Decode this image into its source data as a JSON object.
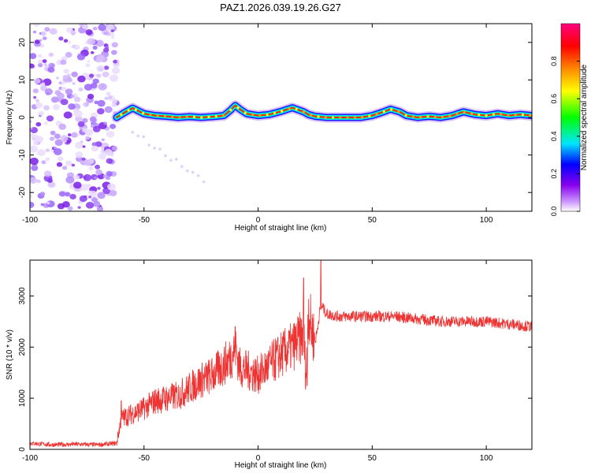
{
  "title": "PAZ1.2026.039.19.26.G27",
  "chart_data": [
    {
      "type": "heatmap",
      "title": "PAZ1.2026.039.19.26.G27",
      "xlabel": "Height of straight line (km)",
      "ylabel": "Frequency (Hz)",
      "xlim": [
        -100,
        120
      ],
      "ylim": [
        -25,
        25
      ],
      "xticks": [
        -100,
        -50,
        0,
        50,
        100
      ],
      "yticks": [
        -20,
        -10,
        0,
        10,
        20
      ],
      "colorbar": {
        "label": "Normalized spectral amplitude",
        "range": [
          0,
          1
        ],
        "ticks": [
          0.0,
          0.2,
          0.4,
          0.6,
          0.8
        ],
        "tick_labels": [
          "0.0",
          "0.2",
          "0.4",
          "0.6",
          "0.8"
        ],
        "colors": [
          "#ffffff",
          "#cc99ff",
          "#7700dd",
          "#0000ff",
          "#00e5ff",
          "#00ff00",
          "#ffff00",
          "#ff8800",
          "#ff0000",
          "#ff0080"
        ]
      },
      "noise_region_km": [
        -100,
        -62
      ],
      "signal_track": {
        "x": [
          -62,
          -58,
          -55,
          -50,
          -45,
          -40,
          -35,
          -30,
          -25,
          -20,
          -15,
          -12,
          -10,
          -8,
          -5,
          0,
          5,
          10,
          15,
          20,
          22,
          25,
          30,
          35,
          40,
          45,
          50,
          55,
          58,
          62,
          65,
          70,
          75,
          80,
          85,
          90,
          95,
          100,
          105,
          110,
          115,
          120
        ],
        "y": [
          0,
          1.5,
          2.5,
          1.0,
          0.5,
          0.3,
          0.0,
          0.2,
          0.0,
          0.2,
          0.5,
          2.0,
          3.2,
          2.2,
          1.0,
          0.5,
          0.8,
          1.6,
          2.6,
          1.5,
          0.8,
          0.3,
          0.0,
          0.0,
          0.0,
          0.0,
          0.5,
          1.5,
          2.2,
          1.5,
          0.5,
          0.0,
          0.3,
          0.0,
          0.5,
          1.5,
          0.8,
          0.5,
          1.0,
          0.5,
          0.8,
          0.5
        ]
      }
    },
    {
      "type": "line",
      "xlabel": "Height of straight line (km)",
      "ylabel": "SNR (10 * v/v)",
      "xlim": [
        -100,
        120
      ],
      "ylim": [
        0,
        3700
      ],
      "xticks": [
        -100,
        -50,
        0,
        50,
        100
      ],
      "yticks": [
        0,
        1000,
        2000,
        3000
      ],
      "series": [
        {
          "name": "SNR",
          "color": "#ee3333",
          "x": [
            -100,
            -90,
            -80,
            -70,
            -62,
            -60,
            -55,
            -50,
            -45,
            -40,
            -35,
            -30,
            -25,
            -20,
            -15,
            -12,
            -10,
            -8,
            -5,
            0,
            5,
            10,
            15,
            20,
            21,
            22,
            23,
            25,
            26,
            27,
            28,
            30,
            35,
            40,
            50,
            60,
            70,
            80,
            90,
            100,
            110,
            120
          ],
          "y": [
            120,
            90,
            100,
            90,
            120,
            600,
            700,
            800,
            950,
            1000,
            1050,
            1200,
            1350,
            1450,
            1650,
            1800,
            2000,
            1600,
            1550,
            1450,
            1650,
            1850,
            2000,
            2250,
            1400,
            2800,
            2450,
            2100,
            2350,
            2700,
            2800,
            2650,
            2600,
            2600,
            2600,
            2600,
            2550,
            2500,
            2500,
            2500,
            2450,
            2400
          ],
          "spikes": [
            {
              "x": 21.5,
              "y": 1250
            },
            {
              "x": 27.5,
              "y": 3700
            },
            {
              "x": 20,
              "y": 3350
            },
            {
              "x": -10,
              "y": 2400
            },
            {
              "x": -60,
              "y": 950
            }
          ]
        }
      ]
    }
  ]
}
